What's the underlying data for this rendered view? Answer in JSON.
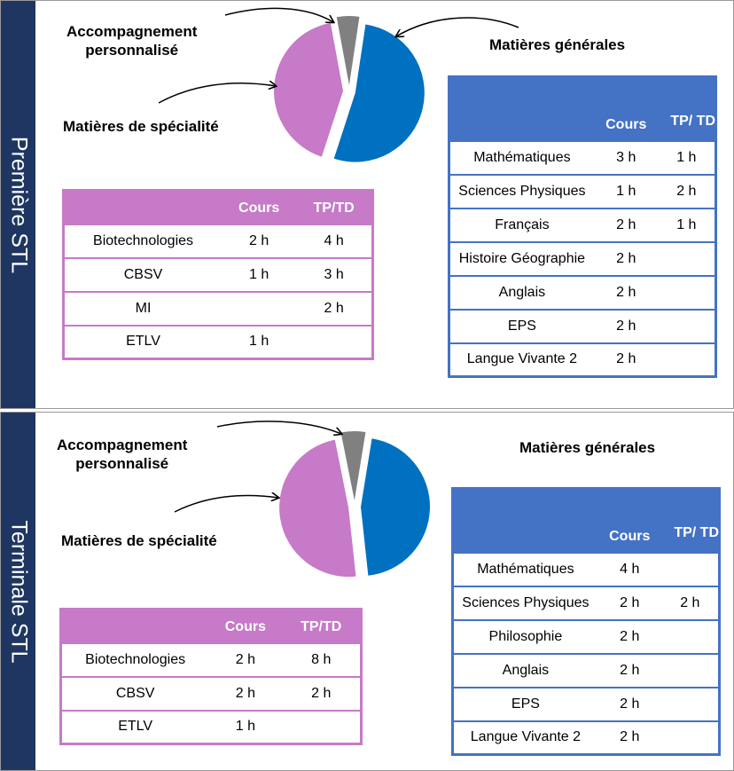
{
  "colors": {
    "specialite": "#c67ac8",
    "generales": "#4472c4",
    "accompagnement": "#808080",
    "pie_generales": "#0070c0",
    "sidebar": "#1e3661"
  },
  "sections": [
    {
      "sidebar_title": "Première STL",
      "labels": {
        "accompagnement": [
          "Accompagnement",
          "personnalisé"
        ],
        "specialite": "Matières de spécialité",
        "generales": "Matières générales"
      },
      "chart_data": {
        "type": "pie",
        "slices": [
          {
            "label": "Matières générales",
            "value": 20,
            "color": "#0070c0"
          },
          {
            "label": "Matières de spécialité",
            "value": 16,
            "color": "#c67ac8"
          },
          {
            "label": "Accompagnement personnalisé",
            "value": 2,
            "color": "#808080"
          }
        ]
      },
      "specialite_table": {
        "headers": [
          "",
          "Cours",
          "TP/TD"
        ],
        "rows": [
          [
            "Biotechnologies",
            "2 h",
            "4 h"
          ],
          [
            "CBSV",
            "1 h",
            "3 h"
          ],
          [
            "MI",
            "",
            "2 h"
          ],
          [
            "ETLV",
            "1 h",
            ""
          ]
        ]
      },
      "generales_table": {
        "headers": [
          "",
          "Cours",
          "TP/ TD"
        ],
        "rows": [
          [
            "Mathématiques",
            "3 h",
            "1 h"
          ],
          [
            "Sciences Physiques",
            "1 h",
            "2 h"
          ],
          [
            "Français",
            "2 h",
            "1 h"
          ],
          [
            "Histoire Géographie",
            "2 h",
            ""
          ],
          [
            "Anglais",
            "2 h",
            ""
          ],
          [
            "EPS",
            "2 h",
            ""
          ],
          [
            "Langue Vivante 2",
            "2 h",
            ""
          ]
        ]
      }
    },
    {
      "sidebar_title": "Terminale STL",
      "labels": {
        "accompagnement": [
          "Accompagnement",
          "personnalisé"
        ],
        "specialite": "Matières de spécialité",
        "generales": "Matières générales"
      },
      "chart_data": {
        "type": "pie",
        "slices": [
          {
            "label": "Matières générales",
            "value": 16,
            "color": "#0070c0"
          },
          {
            "label": "Matières de spécialité",
            "value": 17,
            "color": "#c67ac8"
          },
          {
            "label": "Accompagnement personnalisé",
            "value": 2,
            "color": "#808080"
          }
        ]
      },
      "specialite_table": {
        "headers": [
          "",
          "Cours",
          "TP/TD"
        ],
        "rows": [
          [
            "Biotechnologies",
            "2 h",
            "8 h"
          ],
          [
            "CBSV",
            "2 h",
            "2 h"
          ],
          [
            "ETLV",
            "1 h",
            ""
          ]
        ]
      },
      "generales_table": {
        "headers": [
          "",
          "Cours",
          "TP/ TD"
        ],
        "rows": [
          [
            "Mathématiques",
            "4 h",
            ""
          ],
          [
            "Sciences Physiques",
            "2 h",
            "2 h"
          ],
          [
            "Philosophie",
            "2 h",
            ""
          ],
          [
            "Anglais",
            "2 h",
            ""
          ],
          [
            "EPS",
            "2 h",
            ""
          ],
          [
            "Langue Vivante 2",
            "2 h",
            ""
          ]
        ]
      }
    }
  ]
}
